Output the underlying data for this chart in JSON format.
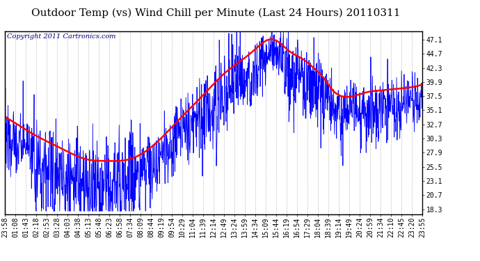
{
  "title": "Outdoor Temp (vs) Wind Chill per Minute (Last 24 Hours) 20110311",
  "copyright_text": "Copyright 2011 Cartronics.com",
  "ylabel_right_ticks": [
    18.3,
    20.7,
    23.1,
    25.5,
    27.9,
    30.3,
    32.7,
    35.1,
    37.5,
    39.9,
    42.3,
    44.7,
    47.1
  ],
  "ylim": [
    17.5,
    48.5
  ],
  "xlim": [
    0,
    1439
  ],
  "background_color": "#ffffff",
  "plot_bg_color": "#ffffff",
  "grid_color": "#bbbbbb",
  "line_color_blue": "#0000ff",
  "line_color_red": "#ff0000",
  "title_fontsize": 11,
  "tick_fontsize": 7,
  "copyright_fontsize": 7,
  "x_tick_labels": [
    "23:58",
    "01:08",
    "01:43",
    "02:18",
    "02:53",
    "03:28",
    "04:03",
    "04:38",
    "05:13",
    "05:48",
    "06:23",
    "06:58",
    "07:34",
    "08:09",
    "08:44",
    "09:19",
    "09:54",
    "10:29",
    "11:04",
    "11:39",
    "12:14",
    "12:49",
    "13:24",
    "13:59",
    "14:34",
    "15:09",
    "15:44",
    "16:19",
    "16:54",
    "17:29",
    "18:04",
    "18:39",
    "19:14",
    "19:49",
    "20:24",
    "20:59",
    "21:34",
    "22:10",
    "22:45",
    "23:20",
    "23:55"
  ],
  "n_minutes": 1440,
  "smooth_keypoints_x": [
    0,
    50,
    100,
    200,
    280,
    350,
    430,
    520,
    600,
    680,
    760,
    840,
    880,
    910,
    940,
    960,
    990,
    1020,
    1060,
    1100,
    1130,
    1160,
    1200,
    1250,
    1300,
    1360,
    1420,
    1439
  ],
  "smooth_keypoints_y": [
    34.0,
    32.5,
    31.0,
    28.5,
    26.8,
    26.5,
    26.8,
    29.5,
    33.5,
    37.5,
    41.5,
    44.5,
    46.2,
    47.1,
    46.8,
    46.0,
    44.8,
    44.0,
    42.5,
    40.5,
    38.5,
    37.5,
    37.5,
    38.2,
    38.5,
    38.8,
    39.2,
    39.5
  ]
}
